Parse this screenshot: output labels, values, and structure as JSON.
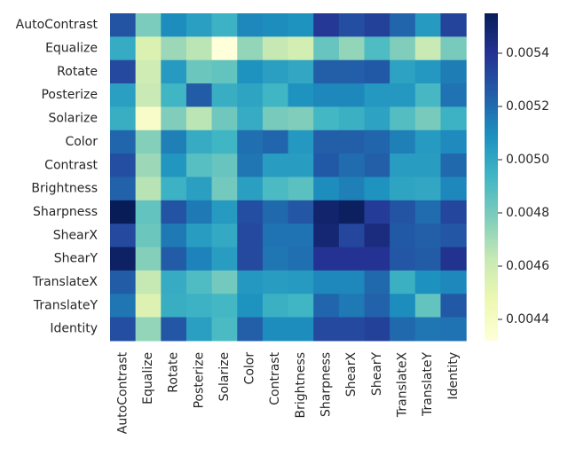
{
  "chart_data": {
    "type": "heatmap",
    "title": "",
    "xlabel": "",
    "ylabel": "",
    "row_labels": [
      "AutoContrast",
      "Equalize",
      "Rotate",
      "Posterize",
      "Solarize",
      "Color",
      "Contrast",
      "Brightness",
      "Sharpness",
      "ShearX",
      "ShearY",
      "TranslateX",
      "TranslateY",
      "Identity"
    ],
    "col_labels": [
      "AutoContrast",
      "Equalize",
      "Rotate",
      "Posterize",
      "Solarize",
      "Color",
      "Contrast",
      "Brightness",
      "Sharpness",
      "ShearX",
      "ShearY",
      "TranslateX",
      "TranslateY",
      "Identity"
    ],
    "values": [
      [
        0.00528,
        0.00479,
        0.0051,
        0.00503,
        0.00495,
        0.00512,
        0.0051,
        0.00508,
        0.00538,
        0.0053,
        0.00535,
        0.00522,
        0.00505,
        0.00534
      ],
      [
        0.00498,
        0.00455,
        0.00472,
        0.00465,
        0.00432,
        0.00474,
        0.00463,
        0.00458,
        0.00484,
        0.00474,
        0.0049,
        0.00478,
        0.00462,
        0.0048
      ],
      [
        0.00532,
        0.0046,
        0.00505,
        0.00483,
        0.00485,
        0.00508,
        0.00503,
        0.005,
        0.00524,
        0.00524,
        0.00526,
        0.00502,
        0.00506,
        0.00515
      ],
      [
        0.00503,
        0.00462,
        0.00494,
        0.00525,
        0.00497,
        0.00501,
        0.00494,
        0.00508,
        0.00512,
        0.00512,
        0.00506,
        0.00506,
        0.00492,
        0.00518
      ],
      [
        0.00497,
        0.00438,
        0.00478,
        0.00465,
        0.00482,
        0.00498,
        0.0048,
        0.00478,
        0.00493,
        0.00496,
        0.00502,
        0.00489,
        0.0048,
        0.00495
      ],
      [
        0.00522,
        0.00477,
        0.00514,
        0.00498,
        0.00494,
        0.00519,
        0.00522,
        0.00506,
        0.00524,
        0.00524,
        0.00522,
        0.00514,
        0.00505,
        0.00511
      ],
      [
        0.0053,
        0.00472,
        0.00507,
        0.00488,
        0.00484,
        0.00517,
        0.00504,
        0.00504,
        0.00526,
        0.0052,
        0.00524,
        0.00504,
        0.00504,
        0.00521
      ],
      [
        0.00523,
        0.00466,
        0.00495,
        0.00503,
        0.00481,
        0.00503,
        0.00491,
        0.00487,
        0.0051,
        0.00514,
        0.00508,
        0.00501,
        0.005,
        0.00512
      ],
      [
        0.00555,
        0.00485,
        0.00528,
        0.00516,
        0.00505,
        0.0053,
        0.00521,
        0.00527,
        0.0055,
        0.00553,
        0.00537,
        0.00528,
        0.0052,
        0.00533
      ],
      [
        0.00532,
        0.00483,
        0.00516,
        0.00504,
        0.00499,
        0.00532,
        0.00518,
        0.00518,
        0.00548,
        0.00533,
        0.00545,
        0.00526,
        0.00524,
        0.00527
      ],
      [
        0.00552,
        0.00477,
        0.00525,
        0.00513,
        0.00504,
        0.00532,
        0.00517,
        0.00519,
        0.0054,
        0.0054,
        0.0054,
        0.00527,
        0.00525,
        0.00541
      ],
      [
        0.00525,
        0.00463,
        0.00498,
        0.0049,
        0.00481,
        0.00506,
        0.00504,
        0.00505,
        0.00512,
        0.00512,
        0.00521,
        0.00496,
        0.00509,
        0.00512
      ],
      [
        0.00517,
        0.00454,
        0.00497,
        0.00495,
        0.00493,
        0.00508,
        0.00496,
        0.00494,
        0.00522,
        0.00516,
        0.00523,
        0.0051,
        0.00485,
        0.00526
      ],
      [
        0.0053,
        0.00474,
        0.00527,
        0.00503,
        0.00491,
        0.00524,
        0.0051,
        0.0051,
        0.00532,
        0.00532,
        0.00535,
        0.00521,
        0.00517,
        0.00518
      ]
    ],
    "colormap": "YlGnBu",
    "vmin": 0.00432,
    "vmax": 0.00555,
    "colorbar": {
      "ticks": [
        0.0044,
        0.0046,
        0.0048,
        0.005,
        0.0052,
        0.0054
      ],
      "tick_labels": [
        "0.0044",
        "0.0046",
        "0.0048",
        "0.0050",
        "0.0052",
        "0.0054"
      ],
      "position": "right"
    },
    "grid": false,
    "legend": "none"
  }
}
